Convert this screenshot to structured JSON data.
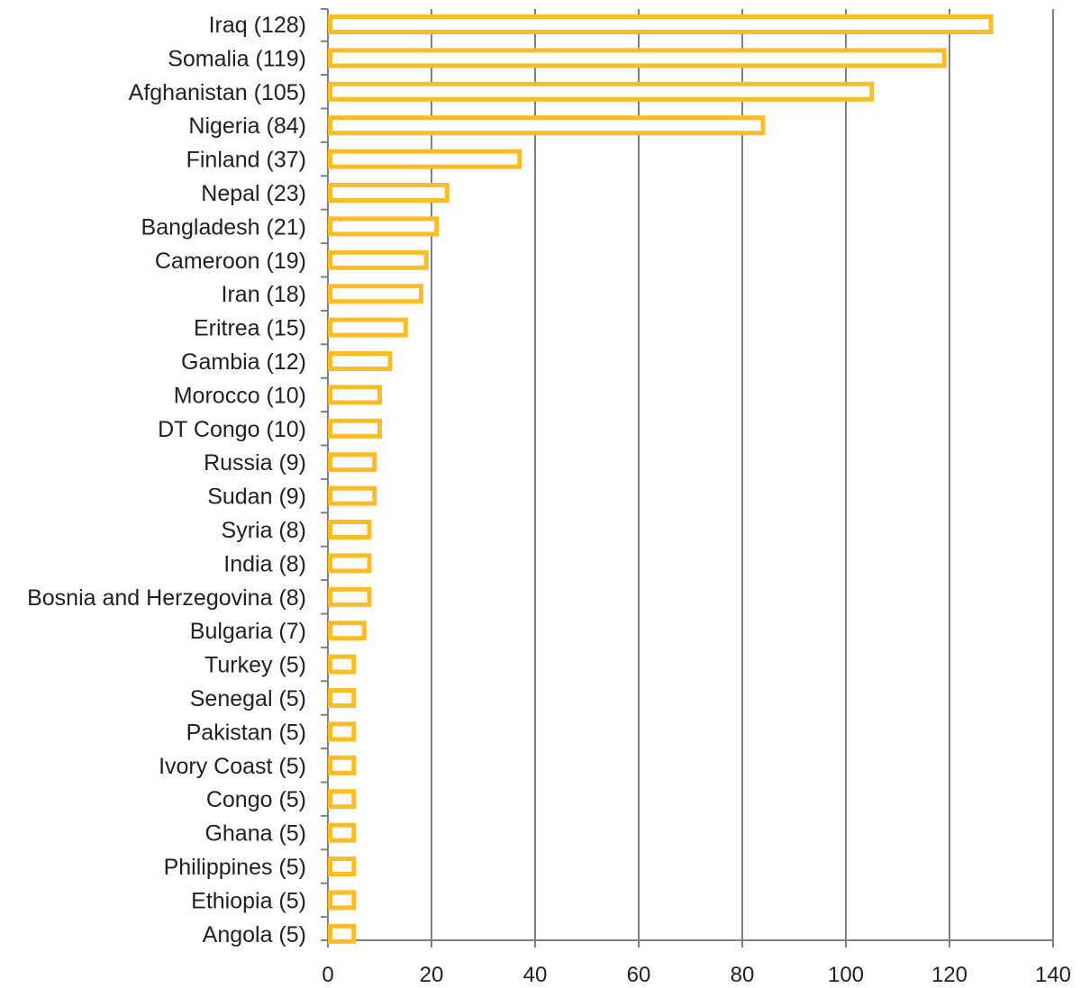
{
  "chart_data": {
    "type": "bar",
    "orientation": "horizontal",
    "title": "",
    "xlabel": "",
    "ylabel": "",
    "xlim": [
      0,
      140
    ],
    "x_ticks": [
      0,
      20,
      40,
      60,
      80,
      100,
      120,
      140
    ],
    "grid": "vertical gridlines on",
    "legend": "none",
    "bar_style": "outlined",
    "colors": {
      "bar_outline": "#fbbc25",
      "bar_fill": "#ffffff",
      "gridline": "#808080",
      "axis": "#808080",
      "text": "#231f20"
    },
    "categories": [
      "Iraq (128)",
      "Somalia (119)",
      "Afghanistan (105)",
      "Nigeria (84)",
      "Finland (37)",
      "Nepal (23)",
      "Bangladesh (21)",
      "Cameroon (19)",
      "Iran (18)",
      "Eritrea (15)",
      "Gambia (12)",
      "Morocco (10)",
      "DT Congo (10)",
      "Russia (9)",
      "Sudan (9)",
      "Syria (8)",
      "India (8)",
      "Bosnia and Herzegovina (8)",
      "Bulgaria (7)",
      "Turkey (5)",
      "Senegal (5)",
      "Pakistan (5)",
      "Ivory Coast (5)",
      "Congo (5)",
      "Ghana (5)",
      "Philippines (5)",
      "Ethiopia (5)",
      "Angola (5)"
    ],
    "values": [
      128,
      119,
      105,
      84,
      37,
      23,
      21,
      19,
      18,
      15,
      12,
      10,
      10,
      9,
      9,
      8,
      8,
      8,
      7,
      5,
      5,
      5,
      5,
      5,
      5,
      5,
      5,
      5
    ]
  }
}
